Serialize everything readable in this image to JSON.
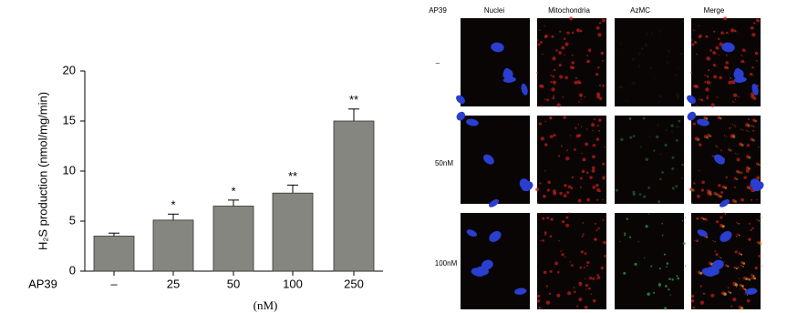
{
  "chart_data": {
    "type": "bar",
    "y_label": "H₂S production (nmol/mg/min)",
    "x_row_label": "AP39",
    "x_unit": "(nM)",
    "categories": [
      "–",
      "25",
      "50",
      "100",
      "250"
    ],
    "values": [
      3.5,
      5.1,
      6.5,
      7.8,
      15.0
    ],
    "errors": [
      0.3,
      0.6,
      0.6,
      0.8,
      1.2
    ],
    "annotations": [
      null,
      "*",
      "*",
      "**",
      "**"
    ],
    "color": "#868680",
    "ylim": [
      0,
      20
    ],
    "yticks": [
      0,
      5,
      10,
      15,
      20
    ]
  },
  "image_panel": {
    "row_header": "AP39",
    "columns": [
      "Nuclei",
      "Mitochondria",
      "AzMC",
      "Merge"
    ],
    "rows": [
      "–",
      "50nM",
      "100nM"
    ]
  }
}
